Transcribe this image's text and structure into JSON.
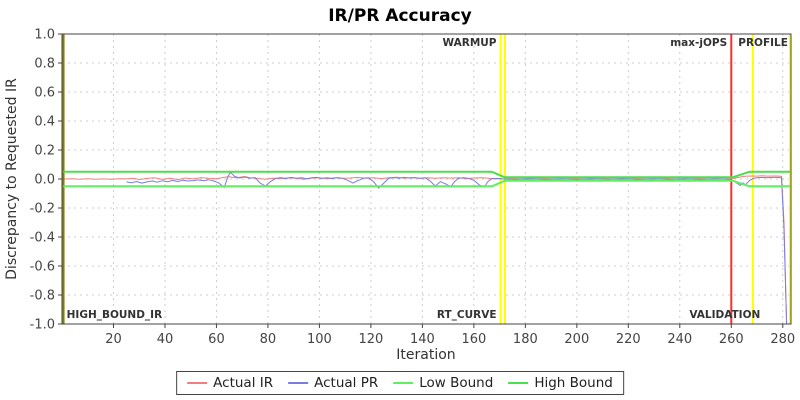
{
  "title": "IR/PR Accuracy",
  "chart_data": {
    "type": "line",
    "title": "IR/PR Accuracy",
    "xlabel": "Iteration",
    "ylabel": "Discrepancy to Requested IR",
    "xlim": [
      0,
      283.2
    ],
    "ylim": [
      -1.0,
      1.0
    ],
    "xticks": [
      20,
      40,
      60,
      80,
      100,
      120,
      140,
      160,
      180,
      200,
      220,
      240,
      260,
      280
    ],
    "yticks": [
      1.0,
      0.8,
      0.6,
      0.4,
      0.2,
      0.0,
      -0.2,
      -0.4,
      -0.6,
      -0.8,
      -1.0
    ],
    "grid": true,
    "legend_position": "bottom",
    "colors": {
      "grid": "#cccccc",
      "border": "#444444",
      "tick_text": "#444444",
      "axis_title": "#333333",
      "marker_label": "#333333"
    },
    "marker_lines": [
      {
        "name": "high-bound-ir-marker",
        "x": 0.6,
        "color": "#808000"
      },
      {
        "name": "warmup-end-marker",
        "x": 170.4,
        "color": "#ffff00"
      },
      {
        "name": "rt-curve-marker",
        "x": 172.1,
        "color": "#ffff00"
      },
      {
        "name": "max-jops-marker",
        "x": 260,
        "color": "#ff2e2e"
      },
      {
        "name": "profile-marker",
        "x": 268.4,
        "color": "#ffff00"
      },
      {
        "name": "run-end-marker",
        "x": 282.8,
        "color": "#ffff00"
      }
    ],
    "marker_labels": [
      {
        "text": "HIGH_BOUND_IR",
        "x": 1.8,
        "anchor": "start",
        "pos": "bottom"
      },
      {
        "text": "WARMUP",
        "x": 168.8,
        "anchor": "end",
        "pos": "top"
      },
      {
        "text": "RT_CURVE",
        "x": 168.8,
        "anchor": "end",
        "pos": "bottom"
      },
      {
        "text": "max-jOPS",
        "x": 258.4,
        "anchor": "end",
        "pos": "top"
      },
      {
        "text": "VALIDATION",
        "x": 257.5,
        "anchor": "middle",
        "pos": "bottom"
      },
      {
        "text": "PROFILE",
        "x": 282,
        "anchor": "end",
        "pos": "top"
      }
    ],
    "series": [
      {
        "name": "Actual IR",
        "color": "#f08080",
        "width": 1,
        "points": [
          [
            1,
            0
          ],
          [
            4,
            0.002
          ],
          [
            7,
            -0.002
          ],
          [
            10,
            0.002
          ],
          [
            13,
            -0.002
          ],
          [
            16,
            0.001
          ],
          [
            19,
            -0.002
          ],
          [
            22,
            0.002
          ],
          [
            25,
            0.001
          ],
          [
            28,
            0.005
          ],
          [
            30,
            -0.004
          ],
          [
            33,
            0.004
          ],
          [
            36,
            0.008
          ],
          [
            39,
            -0.003
          ],
          [
            42,
            0.005
          ],
          [
            45,
            -0.004
          ],
          [
            48,
            0.007
          ],
          [
            51,
            0.001
          ],
          [
            54,
            0.01
          ],
          [
            57,
            0.005
          ],
          [
            60,
            0.002
          ],
          [
            63,
            0.012
          ],
          [
            65,
            0.016
          ],
          [
            67,
            0.008
          ],
          [
            69,
            0.012
          ],
          [
            71,
            0.017
          ],
          [
            73,
            0.009
          ],
          [
            76,
            0.004
          ],
          [
            79,
            -0.002
          ],
          [
            82,
            0.006
          ],
          [
            85,
            0.002
          ],
          [
            88,
            0.009
          ],
          [
            91,
            0.004
          ],
          [
            94,
            -0.002
          ],
          [
            97,
            0.006
          ],
          [
            100,
            0.009
          ],
          [
            103,
            0.002
          ],
          [
            106,
            0.009
          ],
          [
            109,
            0.004
          ],
          [
            112,
            0.007
          ],
          [
            115,
            0.011
          ],
          [
            118,
            0.005
          ],
          [
            121,
            0.008
          ],
          [
            124,
            0.003
          ],
          [
            127,
            0.009
          ],
          [
            130,
            0.012
          ],
          [
            133,
            0.006
          ],
          [
            136,
            0.01
          ],
          [
            139,
            0.004
          ],
          [
            142,
            0.008
          ],
          [
            145,
            0.005
          ],
          [
            148,
            0.009
          ],
          [
            151,
            0.006
          ],
          [
            154,
            0.009
          ],
          [
            157,
            0.003
          ],
          [
            160,
            0.007
          ],
          [
            163,
            0.009
          ],
          [
            166,
            0.005
          ],
          [
            168,
            0.002
          ],
          [
            171,
            0.001
          ],
          [
            175,
            0.003
          ],
          [
            181,
            -0.003
          ],
          [
            187,
            0.003
          ],
          [
            193,
            -0.002
          ],
          [
            199,
            0.003
          ],
          [
            205,
            -0.003
          ],
          [
            211,
            0.003
          ],
          [
            217,
            -0.003
          ],
          [
            223,
            0.003
          ],
          [
            229,
            -0.002
          ],
          [
            235,
            0.003
          ],
          [
            241,
            -0.003
          ],
          [
            247,
            0.003
          ],
          [
            253,
            -0.002
          ],
          [
            258,
            0.001
          ],
          [
            260,
            0.003
          ],
          [
            262,
            0.009
          ],
          [
            264,
            0.016
          ],
          [
            266,
            0.02
          ],
          [
            268,
            0.021
          ],
          [
            270,
            0.02
          ],
          [
            272,
            0.022
          ],
          [
            274,
            0.02
          ],
          [
            276,
            0.021
          ],
          [
            278,
            0.021
          ],
          [
            279.5,
            0.018
          ],
          [
            280.5,
            -0.3
          ],
          [
            281.5,
            -1
          ]
        ]
      },
      {
        "name": "Actual PR",
        "color": "#7b7be0",
        "width": 1,
        "points": [
          [
            25,
            -0.02
          ],
          [
            27,
            -0.026
          ],
          [
            29,
            -0.017
          ],
          [
            31,
            -0.028
          ],
          [
            33,
            -0.02
          ],
          [
            35,
            -0.014
          ],
          [
            37,
            -0.022
          ],
          [
            39,
            -0.012
          ],
          [
            41,
            -0.019
          ],
          [
            43,
            -0.01
          ],
          [
            45,
            -0.017
          ],
          [
            47,
            -0.008
          ],
          [
            49,
            -0.014
          ],
          [
            51,
            -0.011
          ],
          [
            53,
            -0.006
          ],
          [
            55,
            -0.012
          ],
          [
            57,
            -0.005
          ],
          [
            59,
            -0.014
          ],
          [
            61,
            -0.028
          ],
          [
            63,
            -0.058
          ],
          [
            64.5,
            0.018
          ],
          [
            65.5,
            0.046
          ],
          [
            67,
            0.018
          ],
          [
            69,
            0.007
          ],
          [
            71,
            0.014
          ],
          [
            73,
            0.005
          ],
          [
            75,
            0.01
          ],
          [
            77,
            -0.028
          ],
          [
            79,
            -0.048
          ],
          [
            81,
            -0.018
          ],
          [
            83,
            0.004
          ],
          [
            85,
            0.01
          ],
          [
            87,
            0.003
          ],
          [
            89,
            0.011
          ],
          [
            91,
            0.005
          ],
          [
            93,
            0.009
          ],
          [
            95,
            0.002
          ],
          [
            97,
            0.008
          ],
          [
            99,
            0.011
          ],
          [
            101,
            0.004
          ],
          [
            103,
            0.009
          ],
          [
            105,
            0.003
          ],
          [
            107,
            0.01
          ],
          [
            109,
            0.005
          ],
          [
            111,
            -0.009
          ],
          [
            113,
            -0.028
          ],
          [
            115,
            -0.011
          ],
          [
            117,
            0.005
          ],
          [
            119,
            0.008
          ],
          [
            121,
            -0.018
          ],
          [
            123,
            -0.063
          ],
          [
            125,
            -0.028
          ],
          [
            127,
            0.005
          ],
          [
            129,
            0.01
          ],
          [
            131,
            0.006
          ],
          [
            133,
            0.011
          ],
          [
            135,
            0.007
          ],
          [
            137,
            0.01
          ],
          [
            139,
            0.005
          ],
          [
            141,
            0.009
          ],
          [
            143,
            -0.014
          ],
          [
            145,
            -0.048
          ],
          [
            147,
            -0.018
          ],
          [
            149,
            -0.033
          ],
          [
            151,
            -0.053
          ],
          [
            152.5,
            -0.018
          ],
          [
            154,
            0.005
          ],
          [
            156,
            0.009
          ],
          [
            158,
            0.004
          ],
          [
            160,
            -0.009
          ],
          [
            162,
            -0.04
          ],
          [
            164,
            -0.056
          ],
          [
            165.5,
            -0.018
          ],
          [
            167,
            0.003
          ],
          [
            169,
            0.004
          ],
          [
            171,
            0.001
          ],
          [
            176,
            -0.003
          ],
          [
            182,
            0.003
          ],
          [
            188,
            -0.003
          ],
          [
            194,
            0.002
          ],
          [
            200,
            -0.003
          ],
          [
            206,
            0.003
          ],
          [
            212,
            -0.002
          ],
          [
            218,
            0.003
          ],
          [
            224,
            -0.003
          ],
          [
            230,
            0.002
          ],
          [
            236,
            -0.003
          ],
          [
            242,
            0.002
          ],
          [
            248,
            -0.003
          ],
          [
            254,
            0.002
          ],
          [
            259,
            -0.002
          ],
          [
            261,
            -0.016
          ],
          [
            262.5,
            -0.032
          ],
          [
            263.5,
            -0.045
          ],
          [
            264.5,
            -0.027
          ],
          [
            265.5,
            -0.04
          ],
          [
            267,
            -0.012
          ],
          [
            268.5,
            0.004
          ],
          [
            270,
            0.009
          ],
          [
            272,
            0.011
          ],
          [
            274,
            0.009
          ],
          [
            276,
            0.011
          ],
          [
            278,
            0.011
          ],
          [
            279.5,
            0.009
          ],
          [
            280.5,
            -0.35
          ],
          [
            281.5,
            -1
          ]
        ]
      },
      {
        "name": "Low Bound",
        "color": "#5ef05e",
        "width": 2,
        "points": [
          [
            0.5,
            -0.05
          ],
          [
            167,
            -0.05
          ],
          [
            172,
            -0.012
          ],
          [
            260.5,
            -0.012
          ],
          [
            267,
            -0.05
          ],
          [
            282.8,
            -0.05
          ]
        ]
      },
      {
        "name": "High Bound",
        "color": "#4ae04a",
        "width": 2,
        "points": [
          [
            0.5,
            0.05
          ],
          [
            167,
            0.05
          ],
          [
            172,
            0.012
          ],
          [
            260.5,
            0.012
          ],
          [
            267,
            0.05
          ],
          [
            282.8,
            0.05
          ]
        ]
      }
    ]
  }
}
